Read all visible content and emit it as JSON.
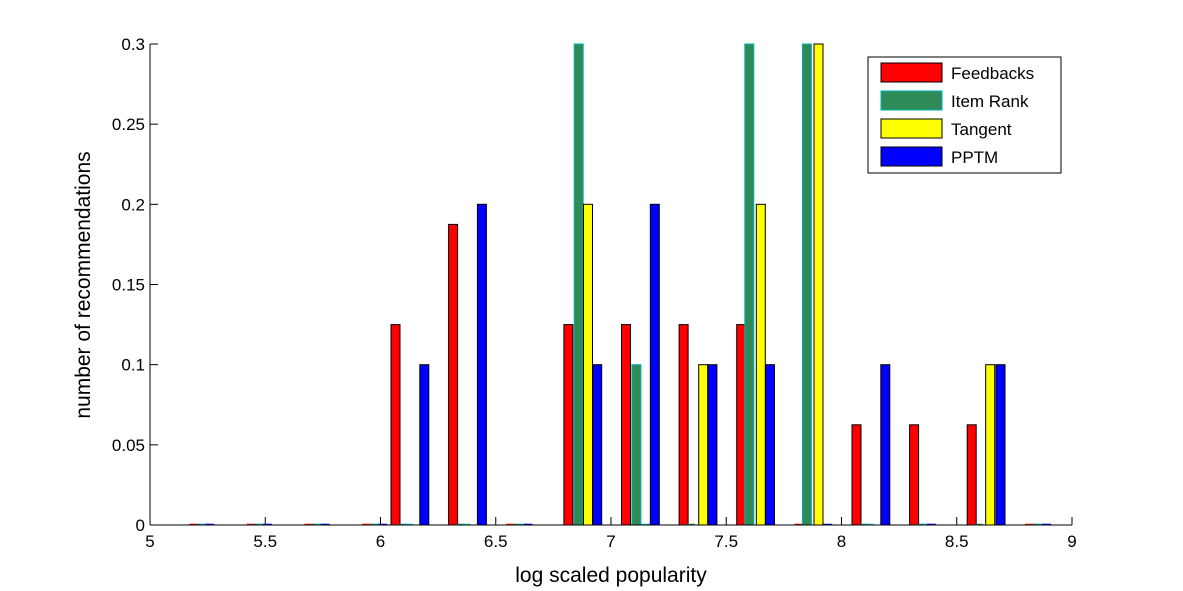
{
  "chart_data": {
    "type": "bar",
    "xlabel": "log scaled popularity",
    "ylabel": "number of recommendations",
    "xlim": [
      5,
      9
    ],
    "ylim": [
      0,
      0.3
    ],
    "x_ticks": [
      "5",
      "5.5",
      "6",
      "6.5",
      "7",
      "7.5",
      "8",
      "8.5",
      "9"
    ],
    "y_ticks": [
      "0",
      "0.05",
      "0.1",
      "0.15",
      "0.2",
      "0.25",
      "0.3"
    ],
    "legend_position": "top-right",
    "grid": false,
    "centers": [
      5.19,
      5.44,
      5.69,
      5.94,
      6.19,
      6.44,
      6.69,
      6.94,
      7.19,
      7.44,
      7.69,
      7.94,
      8.19,
      8.44,
      8.69,
      8.94
    ],
    "series": [
      {
        "name": "Feedbacks",
        "color": "#ff0000",
        "x": [
          5.19,
          5.44,
          5.69,
          5.94,
          6.065,
          6.315,
          6.565,
          6.815,
          7.065,
          7.315,
          7.565,
          7.815,
          8.065,
          8.315,
          8.565,
          8.815
        ],
        "values": [
          0,
          0,
          0,
          0,
          0.125,
          0.1875,
          0,
          0.125,
          0.125,
          0.125,
          0.125,
          0,
          0.0625,
          0.0625,
          0.0625,
          0
        ]
      },
      {
        "name": "Item Rank",
        "color": "#2e8b57",
        "x": [
          5.22,
          5.47,
          5.72,
          5.97,
          6.095,
          6.345,
          6.595,
          6.86,
          7.11,
          7.345,
          7.6,
          7.85,
          8.095,
          8.345,
          8.595,
          8.845
        ],
        "values": [
          0,
          0,
          0,
          0,
          0,
          0,
          0,
          0.3,
          0.1,
          0,
          0.3,
          0.3,
          0,
          0,
          0,
          0
        ]
      },
      {
        "name": "Tangent",
        "color": "#ffff00",
        "x": [
          5.24,
          5.49,
          5.74,
          5.99,
          6.12,
          6.37,
          6.62,
          6.9,
          7.15,
          7.4,
          7.65,
          7.9,
          8.12,
          8.37,
          8.645,
          8.87
        ],
        "values": [
          0,
          0,
          0,
          0,
          0,
          0,
          0,
          0.2,
          0,
          0.1,
          0.2,
          0.3,
          0,
          0,
          0.1,
          0
        ]
      },
      {
        "name": "PPTM",
        "color": "#0000ff",
        "x": [
          5.26,
          5.51,
          5.76,
          6.01,
          6.19,
          6.44,
          6.64,
          6.94,
          7.19,
          7.44,
          7.69,
          7.94,
          8.19,
          8.39,
          8.69,
          8.89
        ],
        "values": [
          0,
          0,
          0,
          0,
          0.1,
          0.2,
          0,
          0.1,
          0.2,
          0.1,
          0.1,
          0,
          0.1,
          0,
          0.1,
          0
        ]
      }
    ]
  }
}
